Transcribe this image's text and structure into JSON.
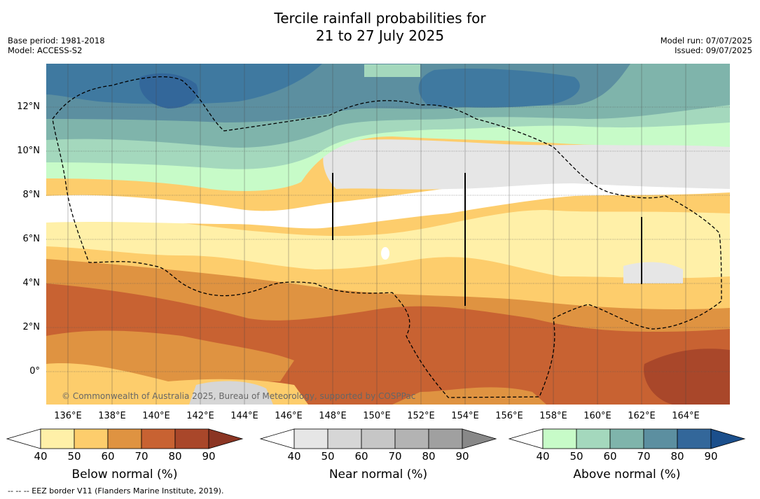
{
  "header": {
    "title_line1": "Tercile rainfall probabilities for",
    "title_line2": "21 to 27 July 2025",
    "base_period": "Base period: 1981-2018",
    "model": "Model: ACCESS-S2",
    "model_run": "Model run: 07/07/2025",
    "issued": "Issued: 09/07/2025"
  },
  "map": {
    "lat_labels": [
      "12°N",
      "10°N",
      "8°N",
      "6°N",
      "4°N",
      "2°N",
      "0°"
    ],
    "lon_labels": [
      "136°E",
      "138°E",
      "140°E",
      "142°E",
      "144°E",
      "146°E",
      "148°E",
      "150°E",
      "152°E",
      "154°E",
      "156°E",
      "158°E",
      "160°E",
      "162°E",
      "164°E"
    ],
    "copyright": "© Commonwealth of Australia 2025, Bureau of Meteorology, supported by COSPPac"
  },
  "colorbars": [
    {
      "label": "Below normal (%)",
      "ticks": [
        "40",
        "50",
        "60",
        "70",
        "80",
        "90"
      ],
      "colors": [
        "#ffffff",
        "#fff0a8",
        "#fdcd6c",
        "#df9341",
        "#c86232",
        "#a9472a",
        "#8b3523"
      ]
    },
    {
      "label": "Near normal (%)",
      "ticks": [
        "40",
        "50",
        "60",
        "70",
        "80",
        "90"
      ],
      "colors": [
        "#ffffff",
        "#e6e6e6",
        "#d6d6d6",
        "#c6c6c6",
        "#b3b3b3",
        "#a0a0a0",
        "#888888"
      ]
    },
    {
      "label": "Above normal (%)",
      "ticks": [
        "40",
        "50",
        "60",
        "70",
        "80",
        "90"
      ],
      "colors": [
        "#ffffff",
        "#c7fbc8",
        "#a4d8bd",
        "#7fb4ab",
        "#5c8fa0",
        "#33679a",
        "#1b4f8c"
      ]
    }
  ],
  "footnote": "--  --  -- EEZ border V11 (Flanders Marine Institute, 2019)."
}
